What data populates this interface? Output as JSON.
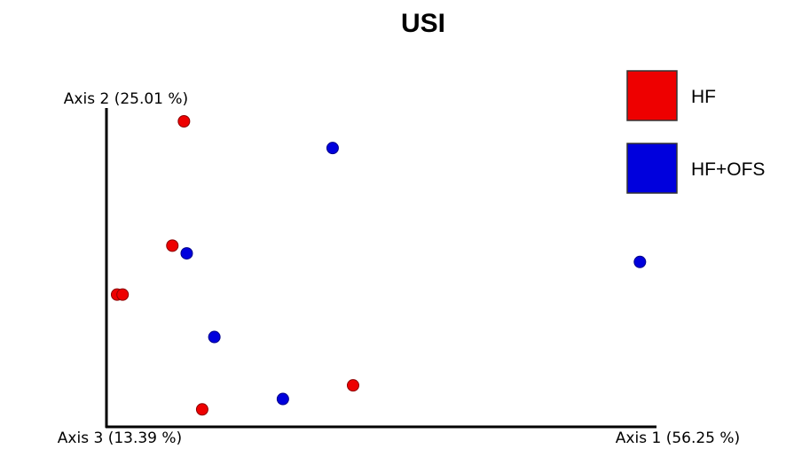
{
  "chart_data": {
    "type": "scatter",
    "title": "USI",
    "axis_labels": {
      "axis1": "Axis 1 (56.25 %)",
      "axis2": "Axis 2 (25.01 %)",
      "axis3": "Axis 3 (13.39 %)"
    },
    "xlim": [
      0,
      1
    ],
    "ylim": [
      0,
      1
    ],
    "legend_position": "top-right",
    "series": [
      {
        "name": "HF",
        "color": "#ee0000",
        "points": [
          {
            "x": 0.137,
            "y": 1.0
          },
          {
            "x": 0.116,
            "y": 0.581
          },
          {
            "x": 0.016,
            "y": 0.416
          },
          {
            "x": 0.026,
            "y": 0.416
          },
          {
            "x": 0.443,
            "y": 0.11
          },
          {
            "x": 0.17,
            "y": 0.029
          }
        ]
      },
      {
        "name": "HF+OFS",
        "color": "#0000dd",
        "points": [
          {
            "x": 0.406,
            "y": 0.91
          },
          {
            "x": 0.142,
            "y": 0.555
          },
          {
            "x": 0.962,
            "y": 0.526
          },
          {
            "x": 0.192,
            "y": 0.273
          },
          {
            "x": 0.316,
            "y": 0.064
          }
        ]
      }
    ]
  }
}
